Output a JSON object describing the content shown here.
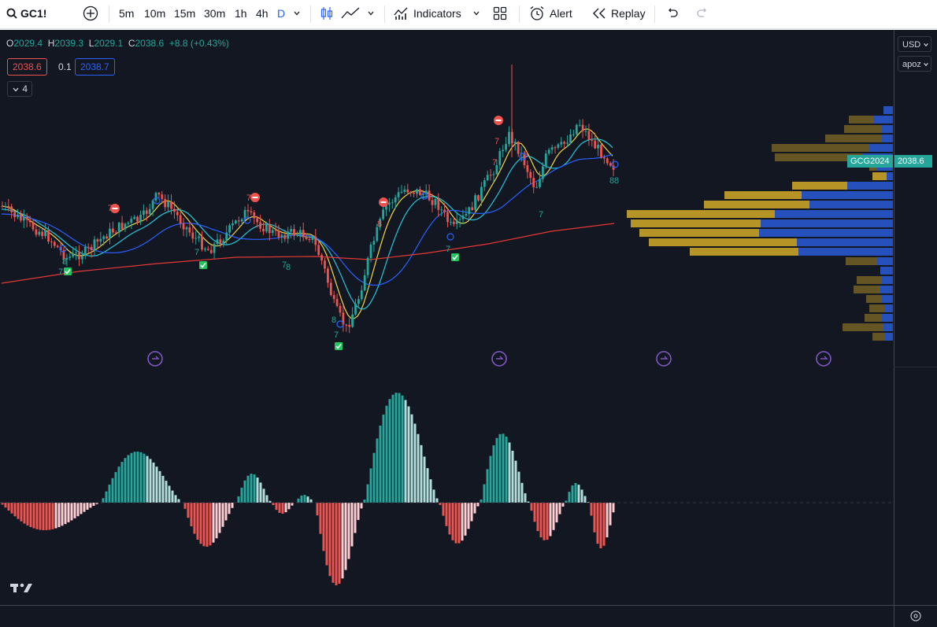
{
  "toolbar": {
    "symbol": "GC1!",
    "intervals": [
      "5m",
      "10m",
      "15m",
      "30m",
      "1h",
      "4h",
      "D"
    ],
    "active_interval": "D",
    "indicators_label": "Indicators",
    "alert_label": "Alert",
    "replay_label": "Replay"
  },
  "legend": {
    "o_label": "O",
    "o_value": "2029.4",
    "h_label": "H",
    "h_value": "2039.3",
    "l_label": "L",
    "l_value": "2029.1",
    "c_label": "C",
    "c_value": "2038.6",
    "change": "+8.8 (+0.43%)",
    "bid": "2038.6",
    "spread": "0.1",
    "ask": "2038.7",
    "indicators_count": "4"
  },
  "price_axis": {
    "currency": "USD",
    "scale": "apoz",
    "symbol_tag": "GCG2024",
    "last_price": "2038.6"
  },
  "colors": {
    "up": "#26a69a",
    "down": "#ef5350",
    "ema_fast": "#f5d742",
    "ema_mid": "#26c6da",
    "ema_slow": "#2962ff",
    "ma_long": "#e53935",
    "vp_up": "#c9a227",
    "vp_down": "#2a5bd7"
  },
  "signals": {
    "sell_marks": [
      "7",
      "7",
      "8",
      "8",
      "7",
      "7",
      "8"
    ],
    "buy_marks": [
      "8",
      "7",
      "7",
      "8",
      "7",
      "8",
      "7",
      "8",
      "7",
      "7",
      "8"
    ]
  }
}
